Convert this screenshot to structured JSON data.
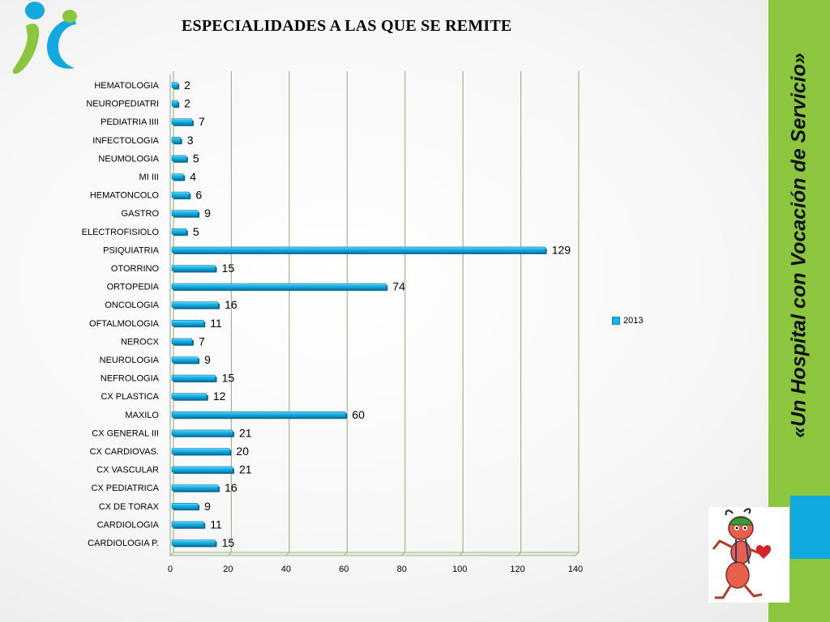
{
  "chart_data": {
    "type": "bar",
    "orientation": "horizontal",
    "title": "ESPECIALIDADES A LAS QUE SE REMITE",
    "categories": [
      "HEMATOLOGIA",
      "NEUROPEDIATRI",
      "PEDIATRIA IIII",
      "INFECTOLOGIA",
      "NEUMOLOGIA",
      "MI III",
      "HEMATONCOLO",
      "GASTRO",
      "ELECTROFISIOLO",
      "PSIQUIATRIA",
      "OTORRINO",
      "ORTOPEDIA",
      "ONCOLOGIA",
      "OFTALMOLOGIA",
      "NEROCX",
      "NEUROLOGIA",
      "NEFROLOGIA",
      "CX PLASTICA",
      "MAXILO",
      "CX GENERAL III",
      "CX CARDIOVAS.",
      "CX VASCULAR",
      "CX PEDIATRICA",
      "CX DE TORAX",
      "CARDIOLOGIA",
      "CARDIOLOGIA P."
    ],
    "series": [
      {
        "name": "2013",
        "color": "#17b3e8",
        "values": [
          2,
          2,
          7,
          3,
          5,
          4,
          6,
          9,
          5,
          129,
          15,
          74,
          16,
          11,
          7,
          9,
          15,
          12,
          60,
          21,
          20,
          21,
          16,
          9,
          11,
          15
        ]
      }
    ],
    "xlim": [
      0,
      140
    ],
    "xticks": [
      0,
      20,
      40,
      60,
      80,
      100,
      120,
      140
    ],
    "grid": "vertical",
    "legend_position": "right",
    "xlabel": "",
    "ylabel": ""
  },
  "branding": {
    "slogan": "«Un Hospital con Vocación de Servicio»",
    "accent_green": "#8cc63f",
    "accent_blue": "#12a8e0",
    "logo_icon": "hospital-logo-icon",
    "mascot_icon": "ant-mascot-icon"
  }
}
